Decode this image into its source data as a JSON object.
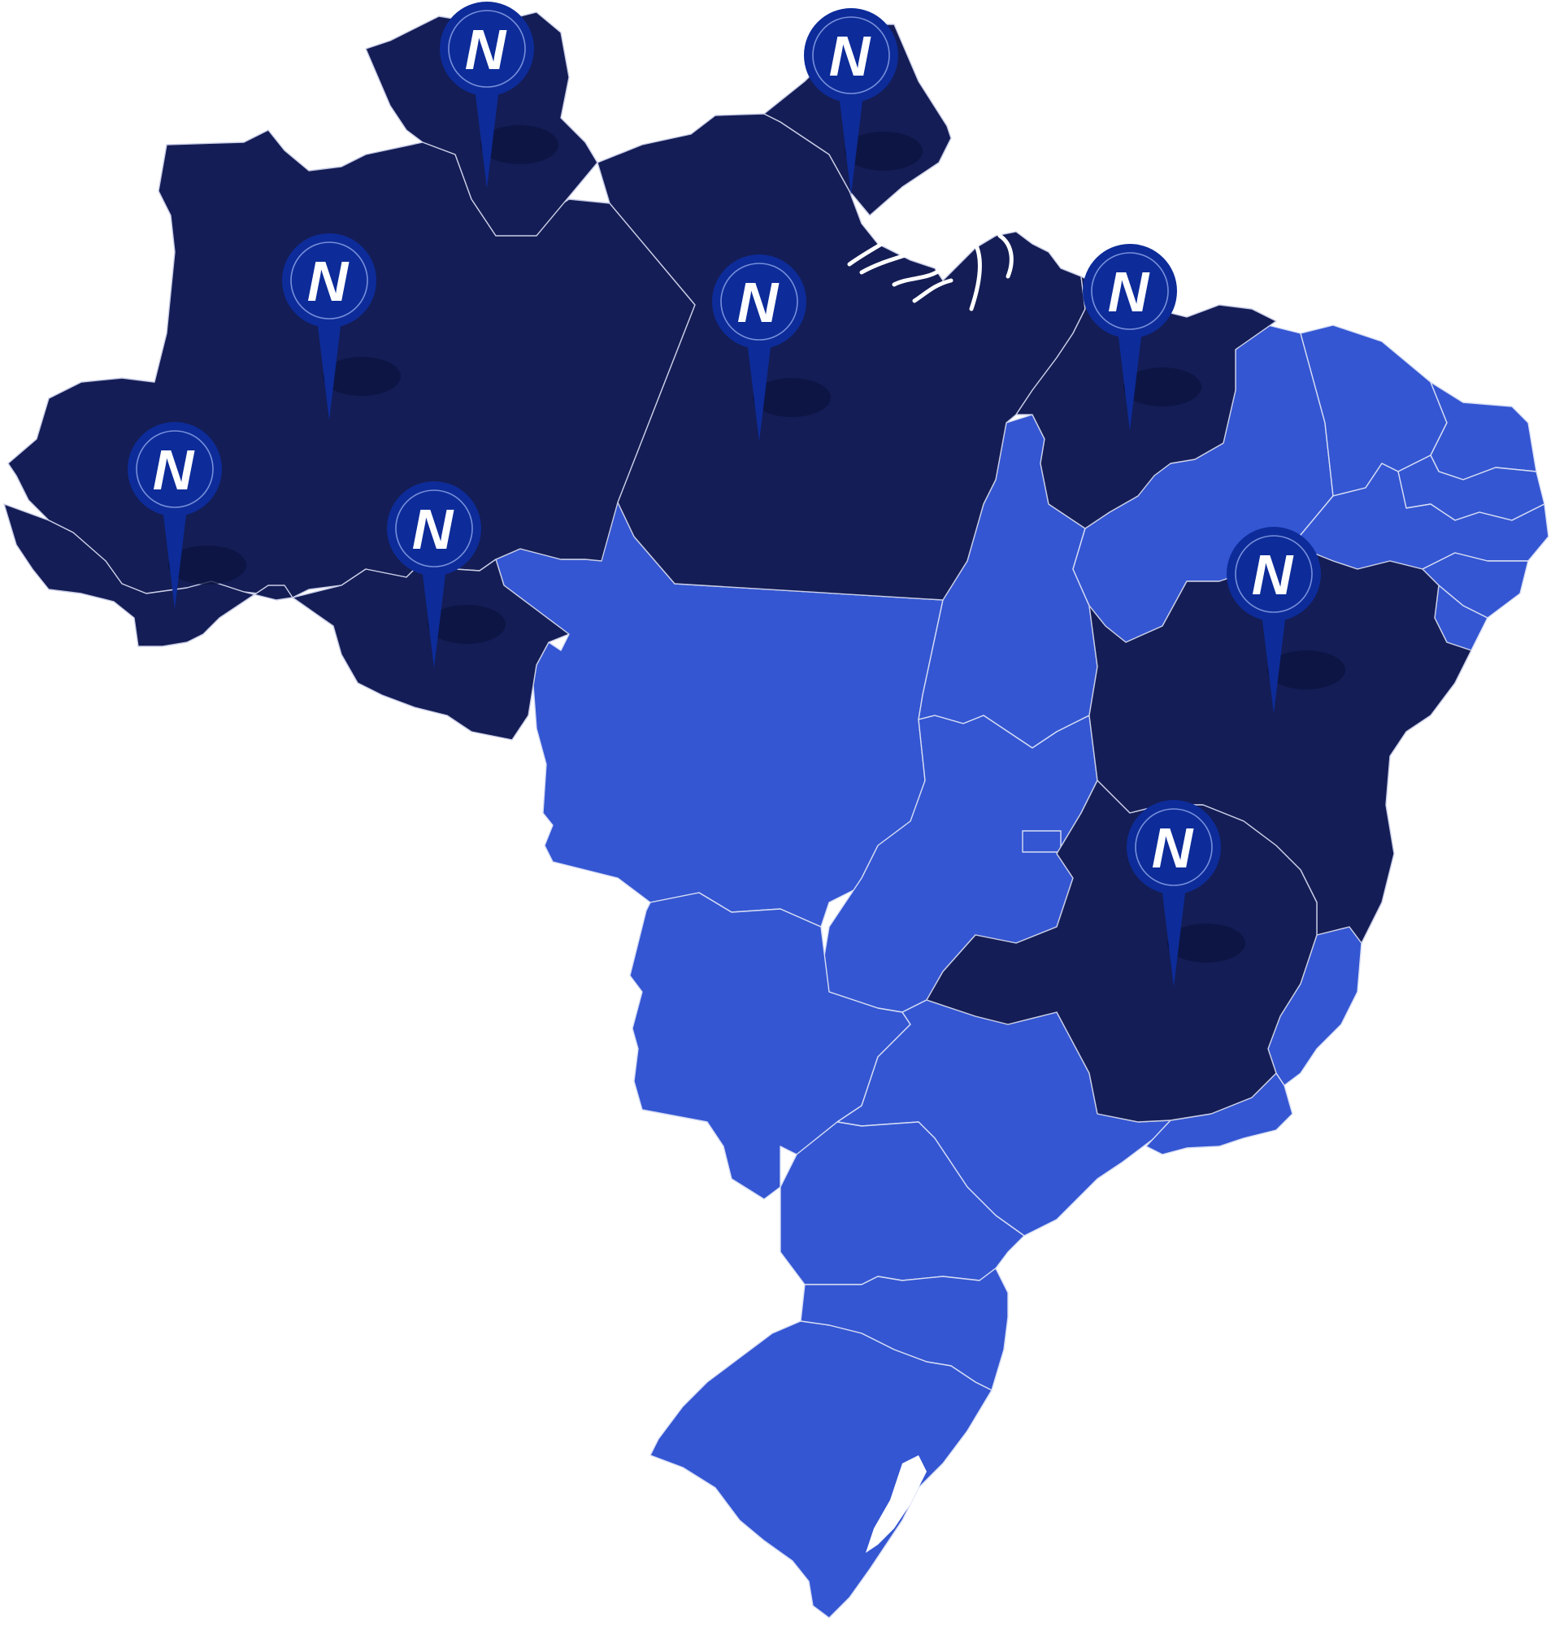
{
  "map": {
    "colors": {
      "active_state": "#141d55",
      "inactive_state": "#3456d2",
      "border": "#c9cde6",
      "pin": "#0d2c99",
      "pin_letter": "#ffffff"
    },
    "marker_letter": "N",
    "active_states": [
      "AC",
      "AM",
      "RR",
      "RO",
      "PA",
      "AP",
      "MA",
      "BA",
      "MG"
    ],
    "inactive_states": [
      "PI",
      "CE",
      "RN",
      "PB",
      "PE",
      "AL",
      "SE",
      "TO",
      "MT",
      "GO",
      "DF",
      "MS",
      "SP",
      "RJ",
      "ES",
      "PR",
      "SC",
      "RS"
    ],
    "markers": [
      {
        "id": "rr",
        "state": "RR",
        "icon": "location-pin-icon"
      },
      {
        "id": "ap",
        "state": "AP",
        "icon": "location-pin-icon"
      },
      {
        "id": "am",
        "state": "AM",
        "icon": "location-pin-icon"
      },
      {
        "id": "pa",
        "state": "PA",
        "icon": "location-pin-icon"
      },
      {
        "id": "ma",
        "state": "MA",
        "icon": "location-pin-icon"
      },
      {
        "id": "ac",
        "state": "AC",
        "icon": "location-pin-icon"
      },
      {
        "id": "ro",
        "state": "RO",
        "icon": "location-pin-icon"
      },
      {
        "id": "ba",
        "state": "BA",
        "icon": "location-pin-icon"
      },
      {
        "id": "mg",
        "state": "MG",
        "icon": "location-pin-icon"
      }
    ]
  }
}
